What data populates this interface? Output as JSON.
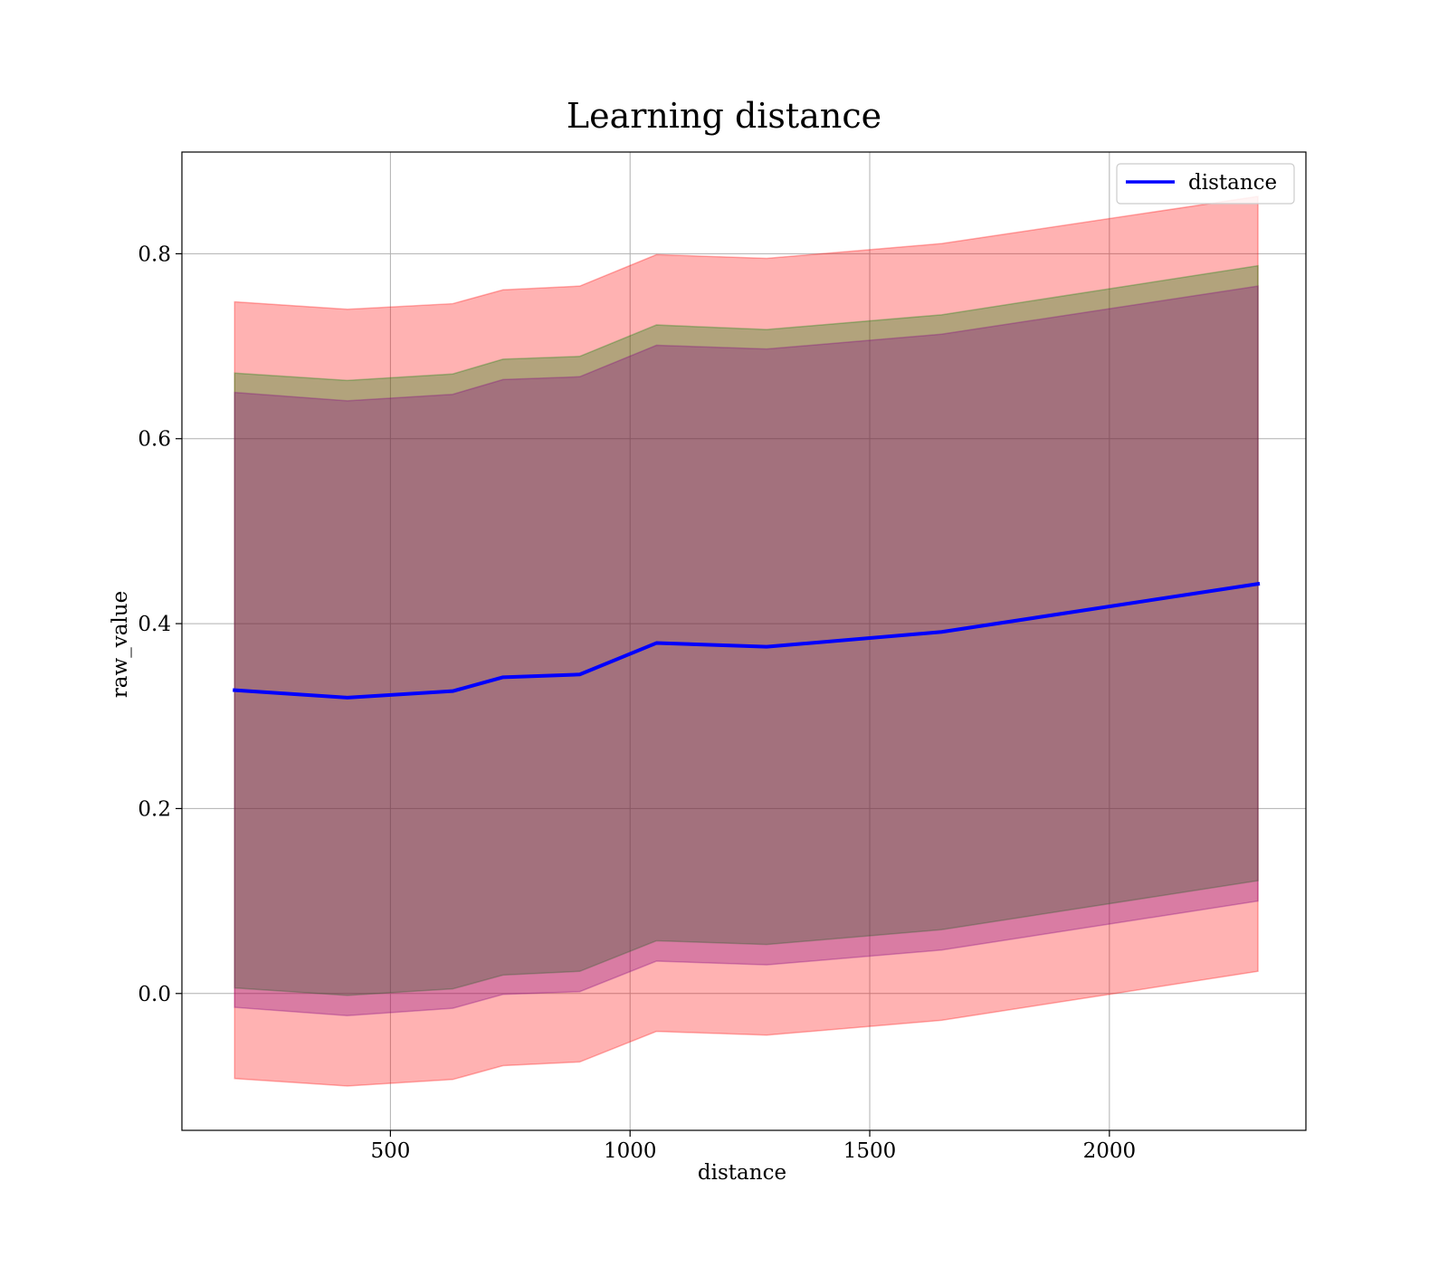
{
  "chart_data": {
    "type": "line",
    "title": "Learning distance",
    "xlabel": "distance",
    "ylabel": "raw_value",
    "xlim": [
      65,
      2410
    ],
    "ylim": [
      -0.148,
      0.91
    ],
    "xticks": [
      500,
      1000,
      1500,
      2000
    ],
    "xtick_labels": [
      "500",
      "1000",
      "1500",
      "2000"
    ],
    "yticks": [
      0.0,
      0.2,
      0.4,
      0.6,
      0.8
    ],
    "ytick_labels": [
      "0.0",
      "0.2",
      "0.4",
      "0.6",
      "0.8"
    ],
    "grid": true,
    "legend_position": "top-right",
    "x": [
      175,
      410,
      630,
      735,
      895,
      1055,
      1285,
      1650,
      2310
    ],
    "series": [
      {
        "name": "distance",
        "color": "#0000ff",
        "values": [
          0.328,
          0.32,
          0.327,
          0.342,
          0.345,
          0.379,
          0.375,
          0.391,
          0.443
        ]
      }
    ],
    "bands": [
      {
        "color": "#ff0000",
        "opacity": 0.3,
        "lower": [
          -0.092,
          -0.1,
          -0.093,
          -0.078,
          -0.074,
          -0.041,
          -0.045,
          -0.029,
          0.024
        ],
        "upper": [
          0.748,
          0.74,
          0.746,
          0.761,
          0.765,
          0.799,
          0.795,
          0.811,
          0.862
        ]
      },
      {
        "color": "#008000",
        "opacity": 0.3,
        "lower": [
          0.006,
          -0.002,
          0.005,
          0.02,
          0.024,
          0.057,
          0.053,
          0.069,
          0.122
        ],
        "upper": [
          0.671,
          0.663,
          0.67,
          0.686,
          0.689,
          0.723,
          0.718,
          0.734,
          0.787
        ]
      },
      {
        "color": "#800080",
        "opacity": 0.3,
        "lower": [
          -0.015,
          -0.024,
          -0.016,
          -0.001,
          0.002,
          0.035,
          0.031,
          0.047,
          0.1
        ],
        "upper": [
          0.65,
          0.641,
          0.648,
          0.664,
          0.667,
          0.701,
          0.697,
          0.713,
          0.765
        ]
      }
    ]
  }
}
